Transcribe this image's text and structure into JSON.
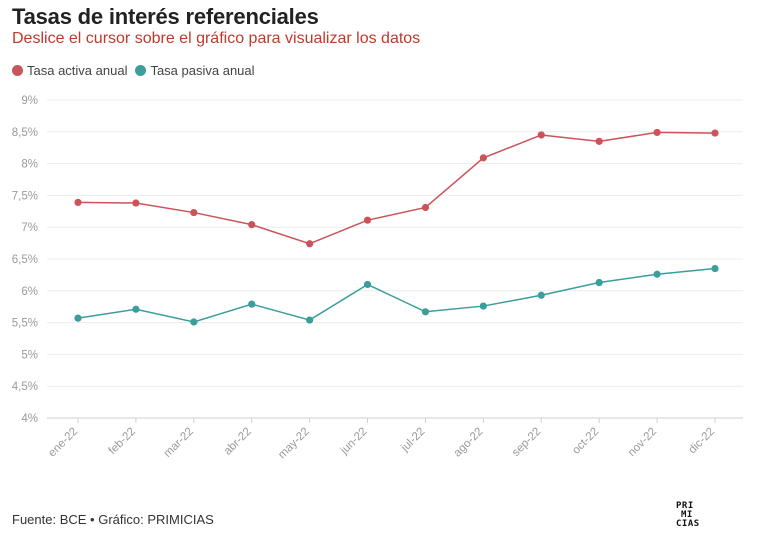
{
  "header": {
    "title": "Tasas de interés referenciales",
    "subtitle": "Deslice el cursor sobre el gráfico para visualizar los datos"
  },
  "colors": {
    "activa": "#c9545a",
    "pasiva": "#3a9e9c",
    "subtitle": "#c0392b"
  },
  "footer": {
    "source": "Fuente: BCE • Gráfico: PRIMICIAS",
    "logo_lines": [
      "PRI",
      "MI",
      "CIAS"
    ]
  },
  "chart_data": {
    "type": "line",
    "title": "Tasas de interés referenciales",
    "categories": [
      "ene-22",
      "feb-22",
      "mar-22",
      "abr-22",
      "may-22",
      "jun-22",
      "jul-22",
      "ago-22",
      "sep-22",
      "oct-22",
      "nov-22",
      "dic-22"
    ],
    "series": [
      {
        "name": "Tasa activa anual",
        "color": "#c9545a",
        "values": [
          7.39,
          7.38,
          7.23,
          7.04,
          6.74,
          7.11,
          7.31,
          8.09,
          8.45,
          8.35,
          8.49,
          8.48
        ]
      },
      {
        "name": "Tasa pasiva anual",
        "color": "#3a9e9c",
        "values": [
          5.57,
          5.71,
          5.51,
          5.79,
          5.54,
          6.1,
          5.67,
          5.76,
          5.93,
          6.13,
          6.26,
          6.35
        ]
      }
    ],
    "ylim": [
      4,
      9
    ],
    "y_ticks": [
      "4%",
      "4,5%",
      "5%",
      "5,5%",
      "6%",
      "6,5%",
      "7%",
      "7,5%",
      "8%",
      "8,5%",
      "9%"
    ],
    "grid": true,
    "legend": "top-left",
    "xlabel": "",
    "ylabel": ""
  }
}
